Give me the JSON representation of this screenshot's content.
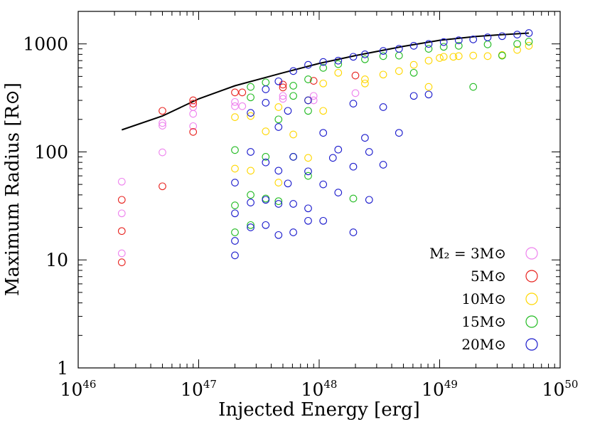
{
  "chart_data": {
    "type": "scatter",
    "title": "",
    "xlabel": "Injected Energy  [erg]",
    "ylabel": "Maximum Radius  [R⊙]",
    "xscale": "log",
    "yscale": "log",
    "xlim": [
      1e+46,
      1e+50
    ],
    "ylim": [
      1,
      2000
    ],
    "x_ticks": [
      {
        "value": 1e+46,
        "base": "10",
        "exp": "46"
      },
      {
        "value": 1e+47,
        "base": "10",
        "exp": "47"
      },
      {
        "value": 1e+48,
        "base": "10",
        "exp": "48"
      },
      {
        "value": 1e+49,
        "base": "10",
        "exp": "49"
      },
      {
        "value": 1e+50,
        "base": "10",
        "exp": "50"
      }
    ],
    "y_ticks": [
      {
        "value": 1,
        "label": "1"
      },
      {
        "value": 10,
        "label": "10"
      },
      {
        "value": 100,
        "label": "100"
      },
      {
        "value": 1000,
        "label": "1000"
      }
    ],
    "grid": false,
    "legend_position": "bottom-right",
    "marker": "open-circle",
    "series": [
      {
        "name": "M₂ = 3M⊙",
        "color": "#ee82ee",
        "points": [
          [
            2.3e+46,
            53
          ],
          [
            2.3e+46,
            27
          ],
          [
            2.3e+46,
            11.5
          ],
          [
            5e+46,
            185
          ],
          [
            5e+46,
            175
          ],
          [
            5e+46,
            99
          ],
          [
            9e+46,
            260
          ],
          [
            9e+46,
            225
          ],
          [
            9e+46,
            173
          ],
          [
            2e+47,
            290
          ],
          [
            2e+47,
            265
          ],
          [
            2.3e+47,
            265
          ],
          [
            5e+47,
            330
          ],
          [
            5e+47,
            310
          ],
          [
            9e+47,
            330
          ],
          [
            9e+47,
            300
          ],
          [
            2e+48,
            350
          ]
        ]
      },
      {
        "name": "5M⊙",
        "color": "#e8231f",
        "points": [
          [
            2.3e+46,
            36
          ],
          [
            2.3e+46,
            18.5
          ],
          [
            2.3e+46,
            9.5
          ],
          [
            5e+46,
            240
          ],
          [
            5e+46,
            48
          ],
          [
            9e+46,
            300
          ],
          [
            9e+46,
            280
          ],
          [
            9e+46,
            153
          ],
          [
            2e+47,
            355
          ],
          [
            2.3e+47,
            355
          ],
          [
            5e+47,
            420
          ],
          [
            5e+47,
            395
          ],
          [
            9e+47,
            455
          ],
          [
            2e+48,
            510
          ]
        ]
      },
      {
        "name": "10M⊙",
        "color": "#ffd700",
        "points": [
          [
            2e+47,
            210
          ],
          [
            2e+47,
            70
          ],
          [
            2.7e+47,
            215
          ],
          [
            2.7e+47,
            67
          ],
          [
            3.6e+47,
            155
          ],
          [
            4.6e+47,
            260
          ],
          [
            4.6e+47,
            52
          ],
          [
            6.1e+47,
            145
          ],
          [
            8.1e+47,
            88
          ],
          [
            8.1e+47,
            300
          ],
          [
            1.08e+48,
            240
          ],
          [
            1.08e+48,
            430
          ],
          [
            1.44e+48,
            540
          ],
          [
            2.4e+48,
            470
          ],
          [
            2.4e+48,
            430
          ],
          [
            3.4e+48,
            520
          ],
          [
            4.6e+48,
            560
          ],
          [
            6.1e+48,
            640
          ],
          [
            8.1e+48,
            400
          ],
          [
            8.1e+48,
            700
          ],
          [
            1e+49,
            740
          ],
          [
            1.08e+49,
            760
          ],
          [
            1.3e+49,
            760
          ],
          [
            1.44e+49,
            770
          ],
          [
            1.9e+49,
            780
          ],
          [
            2.5e+49,
            770
          ],
          [
            3.3e+49,
            790
          ],
          [
            4.4e+49,
            880
          ],
          [
            5.5e+49,
            960
          ]
        ]
      },
      {
        "name": "15M⊙",
        "color": "#22bb22",
        "points": [
          [
            2e+47,
            104
          ],
          [
            2e+47,
            32
          ],
          [
            2e+47,
            18
          ],
          [
            2.7e+47,
            400
          ],
          [
            2.7e+47,
            320
          ],
          [
            2.7e+47,
            40
          ],
          [
            2.7e+47,
            21
          ],
          [
            3.6e+47,
            440
          ],
          [
            3.6e+47,
            90
          ],
          [
            3.6e+47,
            37
          ],
          [
            4.6e+47,
            200
          ],
          [
            4.6e+47,
            35
          ],
          [
            6.1e+47,
            410
          ],
          [
            6.1e+47,
            330
          ],
          [
            6.1e+47,
            90
          ],
          [
            8.1e+47,
            470
          ],
          [
            8.1e+47,
            240
          ],
          [
            8.1e+47,
            60
          ],
          [
            1.08e+48,
            600
          ],
          [
            1.44e+48,
            650
          ],
          [
            1.92e+48,
            37
          ],
          [
            2.4e+48,
            720
          ],
          [
            3.4e+48,
            770
          ],
          [
            4.6e+48,
            780
          ],
          [
            6.1e+48,
            540
          ],
          [
            8.1e+48,
            900
          ],
          [
            1.08e+49,
            940
          ],
          [
            1.44e+49,
            960
          ],
          [
            1.9e+49,
            400
          ],
          [
            2.5e+49,
            990
          ],
          [
            3.3e+49,
            780
          ],
          [
            4.4e+49,
            1000
          ],
          [
            5.5e+49,
            1050
          ]
        ]
      },
      {
        "name": "20M⊙",
        "color": "#1a1acc",
        "points": [
          [
            2e+47,
            52
          ],
          [
            2e+47,
            27
          ],
          [
            2e+47,
            15
          ],
          [
            2e+47,
            11
          ],
          [
            2.7e+47,
            230
          ],
          [
            2.7e+47,
            100
          ],
          [
            2.7e+47,
            34
          ],
          [
            2.7e+47,
            20
          ],
          [
            3.6e+47,
            380
          ],
          [
            3.6e+47,
            285
          ],
          [
            3.6e+47,
            80
          ],
          [
            3.6e+47,
            36
          ],
          [
            3.6e+47,
            21
          ],
          [
            4.6e+47,
            450
          ],
          [
            4.6e+47,
            170
          ],
          [
            4.6e+47,
            67
          ],
          [
            4.6e+47,
            33
          ],
          [
            4.6e+47,
            17
          ],
          [
            5.5e+47,
            240
          ],
          [
            5.5e+47,
            51
          ],
          [
            6.1e+47,
            560
          ],
          [
            6.1e+47,
            90
          ],
          [
            6.1e+47,
            33
          ],
          [
            6.1e+47,
            18
          ],
          [
            8.1e+47,
            640
          ],
          [
            8.1e+47,
            300
          ],
          [
            8.1e+47,
            66
          ],
          [
            8.1e+47,
            30
          ],
          [
            8.1e+47,
            23
          ],
          [
            1.08e+48,
            680
          ],
          [
            1.08e+48,
            150
          ],
          [
            1.08e+48,
            50
          ],
          [
            1.08e+48,
            23
          ],
          [
            1.3e+48,
            88
          ],
          [
            1.44e+48,
            700
          ],
          [
            1.44e+48,
            105
          ],
          [
            1.44e+48,
            42
          ],
          [
            1.92e+48,
            760
          ],
          [
            1.92e+48,
            280
          ],
          [
            1.92e+48,
            73
          ],
          [
            1.92e+48,
            18
          ],
          [
            2.4e+48,
            800
          ],
          [
            2.4e+48,
            135
          ],
          [
            2.6e+48,
            100
          ],
          [
            2.6e+48,
            36
          ],
          [
            3.4e+48,
            860
          ],
          [
            3.4e+48,
            260
          ],
          [
            3.4e+48,
            76
          ],
          [
            4.6e+48,
            900
          ],
          [
            4.6e+48,
            150
          ],
          [
            6.1e+48,
            960
          ],
          [
            6.1e+48,
            330
          ],
          [
            8.1e+48,
            1000
          ],
          [
            8.1e+48,
            340
          ],
          [
            1.08e+49,
            1040
          ],
          [
            1.44e+49,
            1080
          ],
          [
            1.9e+49,
            1100
          ],
          [
            2.5e+49,
            1150
          ],
          [
            3.3e+49,
            1180
          ],
          [
            4.4e+49,
            1220
          ],
          [
            5.5e+49,
            1260
          ]
        ]
      }
    ],
    "curve": {
      "color": "#000000",
      "points": [
        [
          2.3e+46,
          160
        ],
        [
          5e+46,
          215
        ],
        [
          1e+47,
          310
        ],
        [
          2e+47,
          410
        ],
        [
          5e+47,
          540
        ],
        [
          1e+48,
          660
        ],
        [
          2e+48,
          780
        ],
        [
          5e+48,
          950
        ],
        [
          1e+49,
          1080
        ],
        [
          2e+49,
          1170
        ],
        [
          3e+49,
          1210
        ],
        [
          5.5e+49,
          1260
        ]
      ]
    }
  }
}
